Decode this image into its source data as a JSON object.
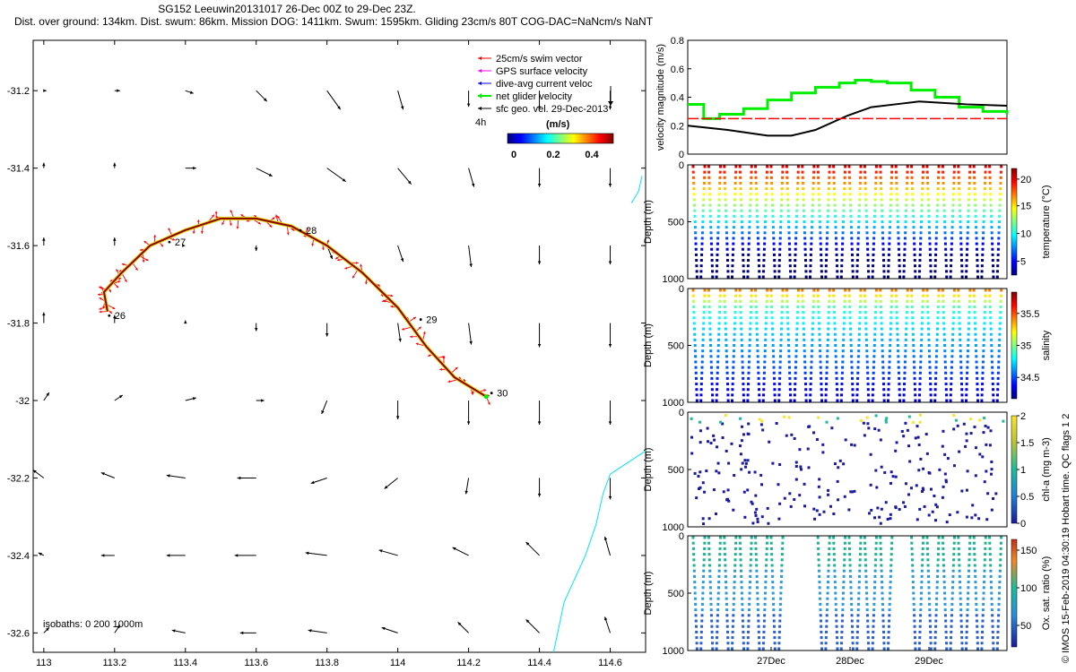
{
  "title": {
    "line1": "SG152 Leeuwin20131017 26-Dec 00Z to 29-Dec 23Z.",
    "line2": "Dist. over ground: 134km. Dist. swum: 86km. Mission DOG: 1411km. Swum: 1595km. Gliding 23cm/s 80T COG-DAC=NaNcm/s NaNT"
  },
  "colors": {
    "track": "#8b0000",
    "swim": "#ff0000",
    "gps": "#ff00ff",
    "dac": "#0000ff",
    "net": "#00ee00",
    "coast": "#00e5ff",
    "current": "#000000",
    "refline": "#ff0000"
  },
  "legend": {
    "entries": [
      "25cm/s swim vector",
      "GPS surface velocity",
      "dive-avg current veloc",
      "net glider velocity",
      "sfc geo. vel. 29-Dec-2013"
    ],
    "scale_label": "4h",
    "colorbar_title": "(m/s)",
    "colorbar_ticks": [
      "0",
      "0.2",
      "0.4"
    ]
  },
  "isobaths_label": "isobaths: 0   200  1000m",
  "side_credit": "© IMOS 15-Feb-2019 04:30:19 Hobart time. QC flags 1  2",
  "chart_data": [
    {
      "type": "scatter",
      "panel": "map",
      "xlim": [
        112.97,
        114.7
      ],
      "ylim": [
        -32.65,
        -31.07
      ],
      "xticks": [
        113,
        113.2,
        113.4,
        113.6,
        113.8,
        114,
        114.2,
        114.4,
        114.6
      ],
      "yticks": [
        -31.2,
        -31.4,
        -31.6,
        -31.8,
        -32,
        -32.2,
        -32.4,
        -32.6
      ],
      "track": [
        [
          113.18,
          -31.77
        ],
        [
          113.17,
          -31.72
        ],
        [
          113.22,
          -31.67
        ],
        [
          113.3,
          -31.6
        ],
        [
          113.4,
          -31.56
        ],
        [
          113.5,
          -31.53
        ],
        [
          113.6,
          -31.53
        ],
        [
          113.7,
          -31.55
        ],
        [
          113.8,
          -31.6
        ],
        [
          113.9,
          -31.67
        ],
        [
          114.0,
          -31.76
        ],
        [
          114.08,
          -31.86
        ],
        [
          114.16,
          -31.94
        ],
        [
          114.25,
          -31.99
        ]
      ],
      "day_labels": [
        {
          "text": "26",
          "x": 113.2,
          "y": -31.79
        },
        {
          "text": "27",
          "x": 113.37,
          "y": -31.6
        },
        {
          "text": "28",
          "x": 113.74,
          "y": -31.57
        },
        {
          "text": "29",
          "x": 114.08,
          "y": -31.8
        },
        {
          "text": "30",
          "x": 114.28,
          "y": -31.99
        }
      ],
      "current_grid": {
        "lons": [
          113,
          113.2,
          113.4,
          113.6,
          113.8,
          114,
          114.2,
          114.4,
          114.6
        ],
        "lats": [
          -31.2,
          -31.4,
          -31.6,
          -31.8,
          -32,
          -32.2,
          -32.4,
          -32.6
        ],
        "u": [
          [
            0.01,
            0.02,
            0.03,
            0.04,
            0.05,
            0.02,
            0.0,
            0.0,
            0.0
          ],
          [
            0.0,
            0.0,
            0.04,
            0.06,
            0.07,
            0.05,
            0.02,
            0.0,
            0.0
          ],
          [
            0.0,
            0.0,
            0.0,
            0.0,
            0.02,
            0.02,
            0.01,
            0.0,
            0.0
          ],
          [
            0.0,
            0.0,
            0.0,
            0.0,
            0.0,
            0.01,
            0.01,
            0.0,
            0.0
          ],
          [
            0.02,
            0.03,
            0.04,
            0.03,
            -0.02,
            0.0,
            0.0,
            0.0,
            0.0
          ],
          [
            -0.04,
            -0.05,
            -0.07,
            -0.07,
            -0.06,
            -0.05,
            -0.01,
            0.0,
            0.0
          ],
          [
            -0.02,
            -0.05,
            -0.07,
            -0.08,
            -0.08,
            -0.07,
            -0.06,
            -0.05,
            -0.02
          ],
          [
            0.02,
            0.02,
            -0.05,
            -0.06,
            -0.07,
            -0.06,
            -0.04,
            -0.05,
            -0.02
          ]
        ],
        "v": [
          [
            0.0,
            0.0,
            -0.01,
            -0.04,
            -0.07,
            -0.07,
            -0.06,
            -0.07,
            -0.07
          ],
          [
            0.02,
            0.02,
            0.0,
            -0.03,
            -0.05,
            -0.06,
            -0.07,
            -0.07,
            -0.07
          ],
          [
            0.03,
            0.03,
            0.0,
            -0.02,
            -0.05,
            -0.06,
            -0.08,
            -0.07,
            -0.07
          ],
          [
            0.04,
            0.03,
            0.01,
            -0.03,
            -0.05,
            -0.07,
            -0.08,
            -0.09,
            -0.09
          ],
          [
            0.03,
            0.02,
            0.01,
            0.0,
            -0.05,
            -0.07,
            -0.09,
            -0.09,
            -0.09
          ],
          [
            0.03,
            0.02,
            0.01,
            0.0,
            -0.02,
            -0.04,
            -0.06,
            -0.07,
            -0.08
          ],
          [
            0.01,
            0.0,
            0.0,
            0.0,
            0.01,
            0.02,
            0.03,
            0.05,
            0.07
          ],
          [
            0.02,
            0.03,
            0.01,
            0.0,
            0.01,
            0.02,
            0.04,
            0.05,
            0.06
          ]
        ]
      },
      "coastline": [
        [
          114.44,
          -32.65
        ],
        [
          114.47,
          -32.52
        ],
        [
          114.53,
          -32.4
        ],
        [
          114.56,
          -32.32
        ],
        [
          114.58,
          -32.24
        ],
        [
          114.6,
          -32.19
        ],
        [
          114.65,
          -32.16
        ],
        [
          114.7,
          -32.13
        ]
      ],
      "island": [
        [
          114.66,
          -31.49
        ],
        [
          114.68,
          -31.46
        ],
        [
          114.69,
          -31.42
        ]
      ]
    },
    {
      "type": "line",
      "panel": "velocity",
      "ylabel": "velocity magnitude (m/s)",
      "ylim": [
        0,
        0.8
      ],
      "yticks": [
        "0",
        "0.2",
        "0.4",
        "0.6",
        "0.8"
      ],
      "x_range_days": [
        26,
        30
      ],
      "series": [
        {
          "color": "#00ee00",
          "x": [
            26,
            26.2,
            26.4,
            26.7,
            27,
            27.3,
            27.6,
            27.9,
            28.1,
            28.3,
            28.5,
            28.8,
            29.1,
            29.4,
            29.7,
            30
          ],
          "y": [
            0.35,
            0.25,
            0.28,
            0.32,
            0.38,
            0.43,
            0.47,
            0.5,
            0.52,
            0.51,
            0.5,
            0.45,
            0.4,
            0.33,
            0.3,
            0.28
          ]
        },
        {
          "color": "#000000",
          "x": [
            26,
            26.5,
            27,
            27.3,
            27.6,
            28,
            28.3,
            28.6,
            28.9,
            29.2,
            29.5,
            30
          ],
          "y": [
            0.2,
            0.17,
            0.13,
            0.13,
            0.17,
            0.27,
            0.33,
            0.35,
            0.37,
            0.36,
            0.35,
            0.34
          ]
        },
        {
          "color": "#ff0000",
          "x": [
            26,
            30
          ],
          "y": [
            0.25,
            0.25
          ]
        }
      ]
    },
    {
      "type": "scatter",
      "panel": "temperature",
      "ylabel": "Depth (m)",
      "yticks": [
        "0",
        "500",
        "1000"
      ],
      "colorbar_label": "temperature (°C)",
      "colorbar_ticks": [
        "5",
        "10",
        "15",
        "20"
      ],
      "profiles": 40
    },
    {
      "type": "scatter",
      "panel": "salinity",
      "ylabel": "Depth (m)",
      "yticks": [
        "0",
        "500",
        "1000"
      ],
      "colorbar_label": "salinity",
      "colorbar_ticks": [
        "34.5",
        "35",
        "35.5"
      ],
      "profiles": 40
    },
    {
      "type": "scatter",
      "panel": "chla",
      "ylabel": "Depth (m)",
      "yticks": [
        "0",
        "500",
        "1000"
      ],
      "colorbar_label": "chl-a (mg m-3)",
      "colorbar_ticks": [
        "0",
        "0.5",
        "1",
        "1.5",
        "2"
      ],
      "profiles": 40
    },
    {
      "type": "scatter",
      "panel": "oxygen",
      "ylabel": "Depth (m)",
      "yticks": [
        "0",
        "500",
        "1000"
      ],
      "colorbar_label": "Ox. sat. ratio (%)",
      "colorbar_ticks": [
        "50",
        "100",
        "150"
      ],
      "xticks": [
        "27Dec",
        "28Dec",
        "29Dec"
      ],
      "profiles": 28
    }
  ]
}
